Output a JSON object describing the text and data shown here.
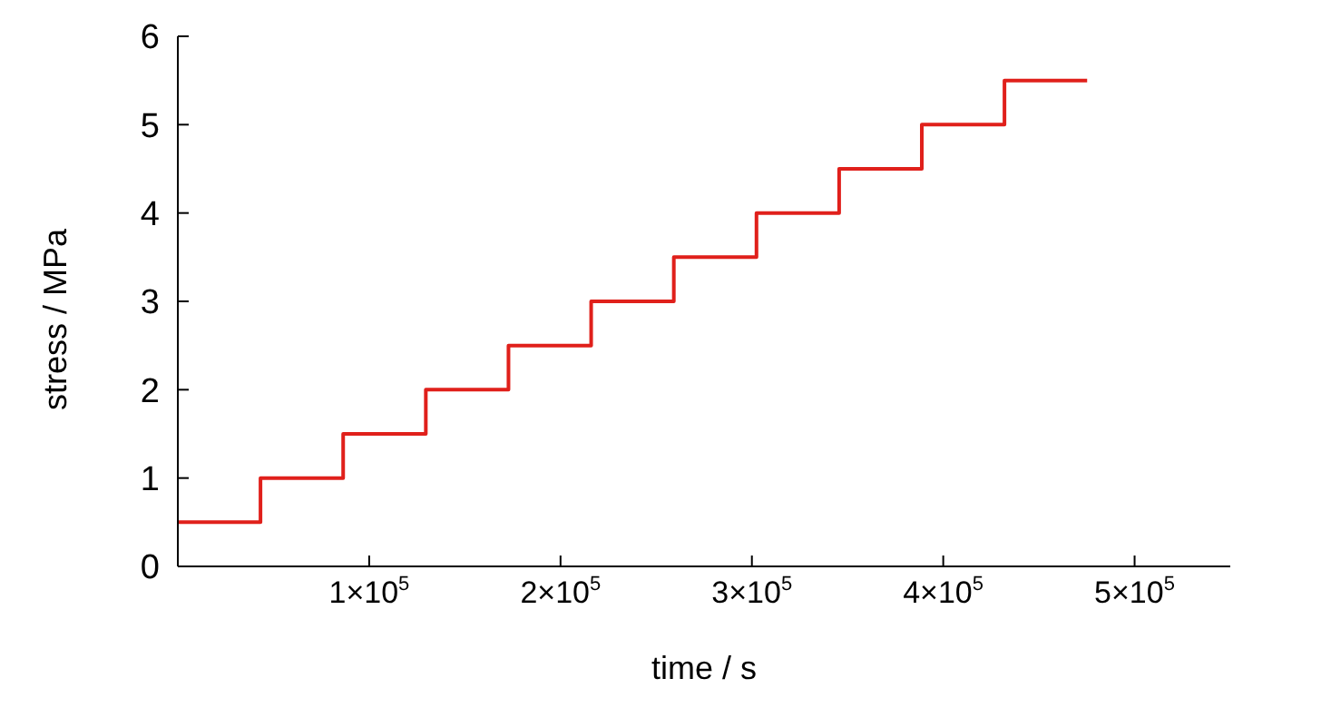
{
  "chart_data": {
    "type": "step",
    "xlabel": "time / s",
    "ylabel": "stress / MPa",
    "x": [
      0,
      43200,
      86400,
      129600,
      172800,
      216000,
      259200,
      302400,
      345600,
      388800,
      432000,
      475200
    ],
    "series": [
      {
        "color": "#e0201b",
        "values": [
          0.5,
          1,
          1.5,
          2,
          2.5,
          3,
          3.5,
          4,
          4.5,
          5,
          5.5,
          5.5
        ]
      }
    ],
    "xlim": [
      0,
      550000
    ],
    "xticks": [
      {
        "value": 100000,
        "label": "1×10$^{5}$"
      },
      {
        "value": 200000,
        "label": "2×10$^{5}$"
      },
      {
        "value": 300000,
        "label": "3×10$^{5}$"
      },
      {
        "value": 400000,
        "label": "4×10$^{5}$"
      },
      {
        "value": 500000,
        "label": "5×10$^{5}$"
      }
    ],
    "ylim": [
      0,
      6
    ],
    "yticks": [
      0,
      1,
      2,
      3,
      4,
      5,
      6
    ],
    "grid": false,
    "legend": false,
    "marker": "none",
    "line_style": "solid"
  }
}
